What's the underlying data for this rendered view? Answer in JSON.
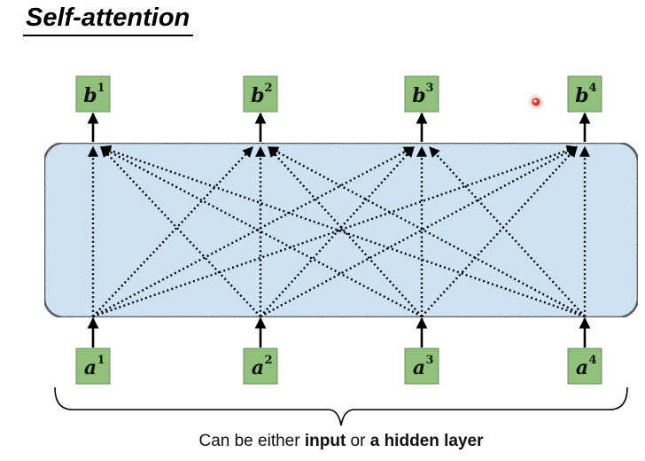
{
  "title": "Self-attention",
  "layer_fill": "#c5def0",
  "node_fill": "#8fc17a",
  "pointer_color": "#e8302a",
  "outputs": [
    {
      "var": "b",
      "sup": "1"
    },
    {
      "var": "b",
      "sup": "2"
    },
    {
      "var": "b",
      "sup": "3"
    },
    {
      "var": "b",
      "sup": "4"
    }
  ],
  "inputs": [
    {
      "var": "a",
      "sup": "1"
    },
    {
      "var": "a",
      "sup": "2"
    },
    {
      "var": "a",
      "sup": "3"
    },
    {
      "var": "a",
      "sup": "4"
    }
  ],
  "caption": {
    "prefix": "Can be either ",
    "term1": "input",
    "mid": " or ",
    "term2": "a hidden layer"
  }
}
